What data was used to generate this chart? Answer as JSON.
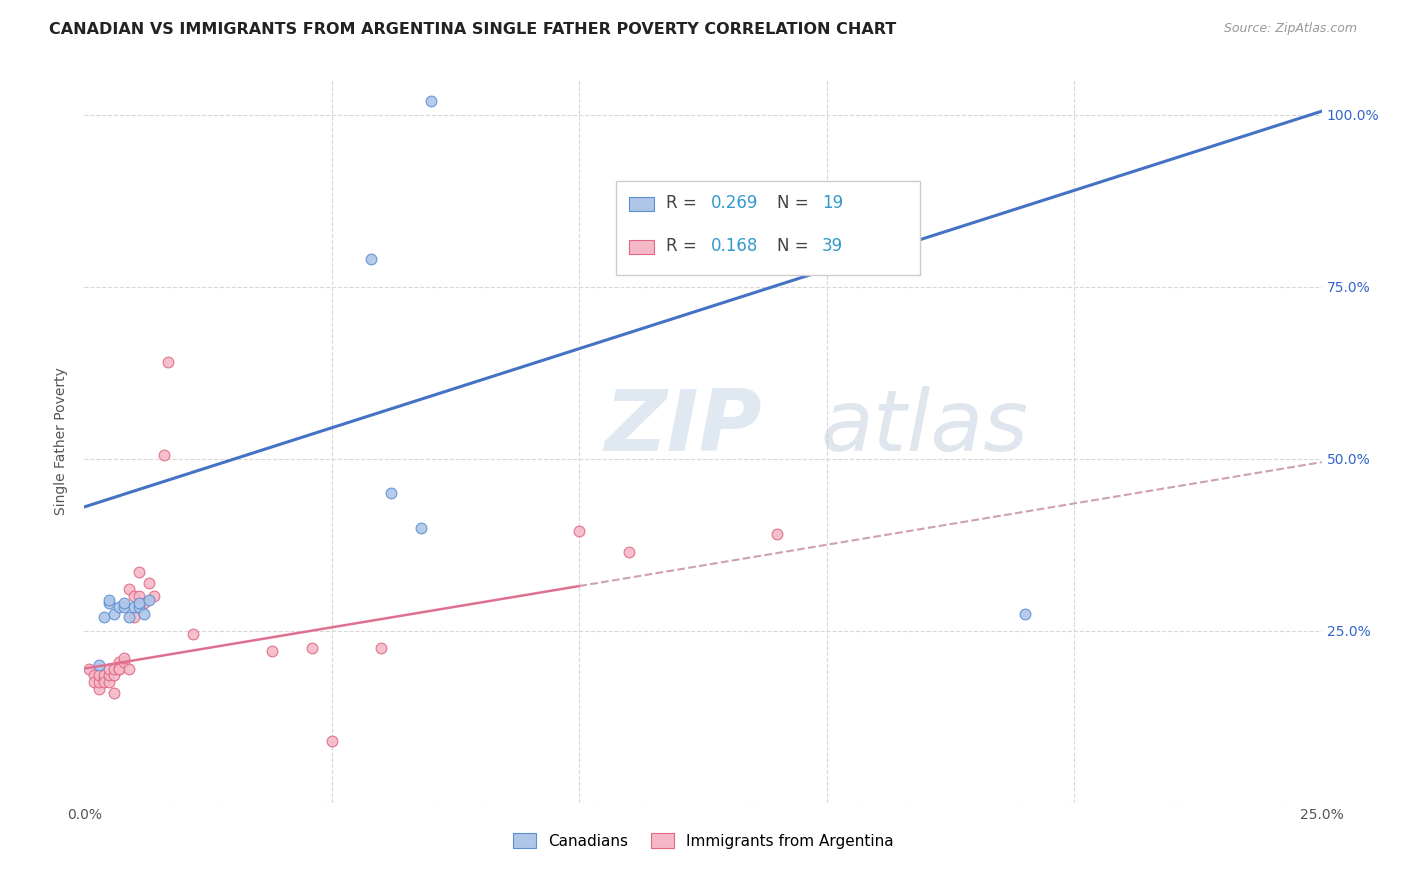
{
  "title": "CANADIAN VS IMMIGRANTS FROM ARGENTINA SINGLE FATHER POVERTY CORRELATION CHART",
  "source": "Source: ZipAtlas.com",
  "ylabel": "Single Father Poverty",
  "xlim": [
    0.0,
    0.25
  ],
  "ylim": [
    0.0,
    1.05
  ],
  "x_ticks": [
    0.0,
    0.05,
    0.1,
    0.15,
    0.2,
    0.25
  ],
  "x_tick_labels": [
    "0.0%",
    "",
    "",
    "",
    "",
    "25.0%"
  ],
  "y_ticks": [
    0.0,
    0.25,
    0.5,
    0.75,
    1.0
  ],
  "y_tick_labels": [
    "",
    "25.0%",
    "50.0%",
    "75.0%",
    "100.0%"
  ],
  "canadians_x": [
    0.003,
    0.004,
    0.005,
    0.005,
    0.006,
    0.007,
    0.008,
    0.008,
    0.009,
    0.01,
    0.011,
    0.011,
    0.012,
    0.013,
    0.058,
    0.062,
    0.068,
    0.07,
    0.19
  ],
  "canadians_y": [
    0.2,
    0.27,
    0.29,
    0.295,
    0.275,
    0.285,
    0.285,
    0.29,
    0.27,
    0.285,
    0.285,
    0.29,
    0.275,
    0.295,
    0.79,
    0.45,
    0.4,
    1.02,
    0.275
  ],
  "argentina_x": [
    0.001,
    0.002,
    0.002,
    0.003,
    0.003,
    0.003,
    0.004,
    0.004,
    0.004,
    0.005,
    0.005,
    0.005,
    0.006,
    0.006,
    0.006,
    0.007,
    0.007,
    0.007,
    0.008,
    0.008,
    0.009,
    0.009,
    0.01,
    0.01,
    0.011,
    0.011,
    0.012,
    0.013,
    0.014,
    0.016,
    0.017,
    0.022,
    0.038,
    0.046,
    0.05,
    0.06,
    0.1,
    0.11,
    0.14
  ],
  "argentina_y": [
    0.195,
    0.185,
    0.175,
    0.165,
    0.175,
    0.185,
    0.18,
    0.185,
    0.175,
    0.175,
    0.185,
    0.195,
    0.16,
    0.185,
    0.195,
    0.195,
    0.205,
    0.195,
    0.205,
    0.21,
    0.195,
    0.31,
    0.27,
    0.3,
    0.335,
    0.3,
    0.29,
    0.32,
    0.3,
    0.505,
    0.64,
    0.245,
    0.22,
    0.225,
    0.09,
    0.225,
    0.395,
    0.365,
    0.39
  ],
  "canadian_trendline_intercept": 0.43,
  "canadian_trendline_slope": 2.3,
  "canadian_trendline_color": "#4472c4",
  "argentina_trendline_intercept": 0.195,
  "argentina_trendline_slope": 1.2,
  "argentina_trendline_color": "#e07090",
  "argentina_dashed_color": "#d0a0b0",
  "scatter_color_canadian": "#aec6e8",
  "scatter_color_argentina": "#f4b8c8",
  "scatter_edge_canadian": "#5b8fd4",
  "scatter_edge_argentina": "#e06880",
  "scatter_size": 60,
  "watermark_zip": "ZIP",
  "watermark_atlas": "atlas",
  "background_color": "#ffffff",
  "grid_color": "#d8d8d8",
  "legend_r1_label": "R = ",
  "legend_r1_val": "0.269",
  "legend_n1_label": "N = ",
  "legend_n1_val": "19",
  "legend_r2_label": "R = ",
  "legend_r2_val": "0.168",
  "legend_n2_label": "N = ",
  "legend_n2_val": "39",
  "legend_number_color": "#3399cc",
  "legend_text_color": "#444444"
}
